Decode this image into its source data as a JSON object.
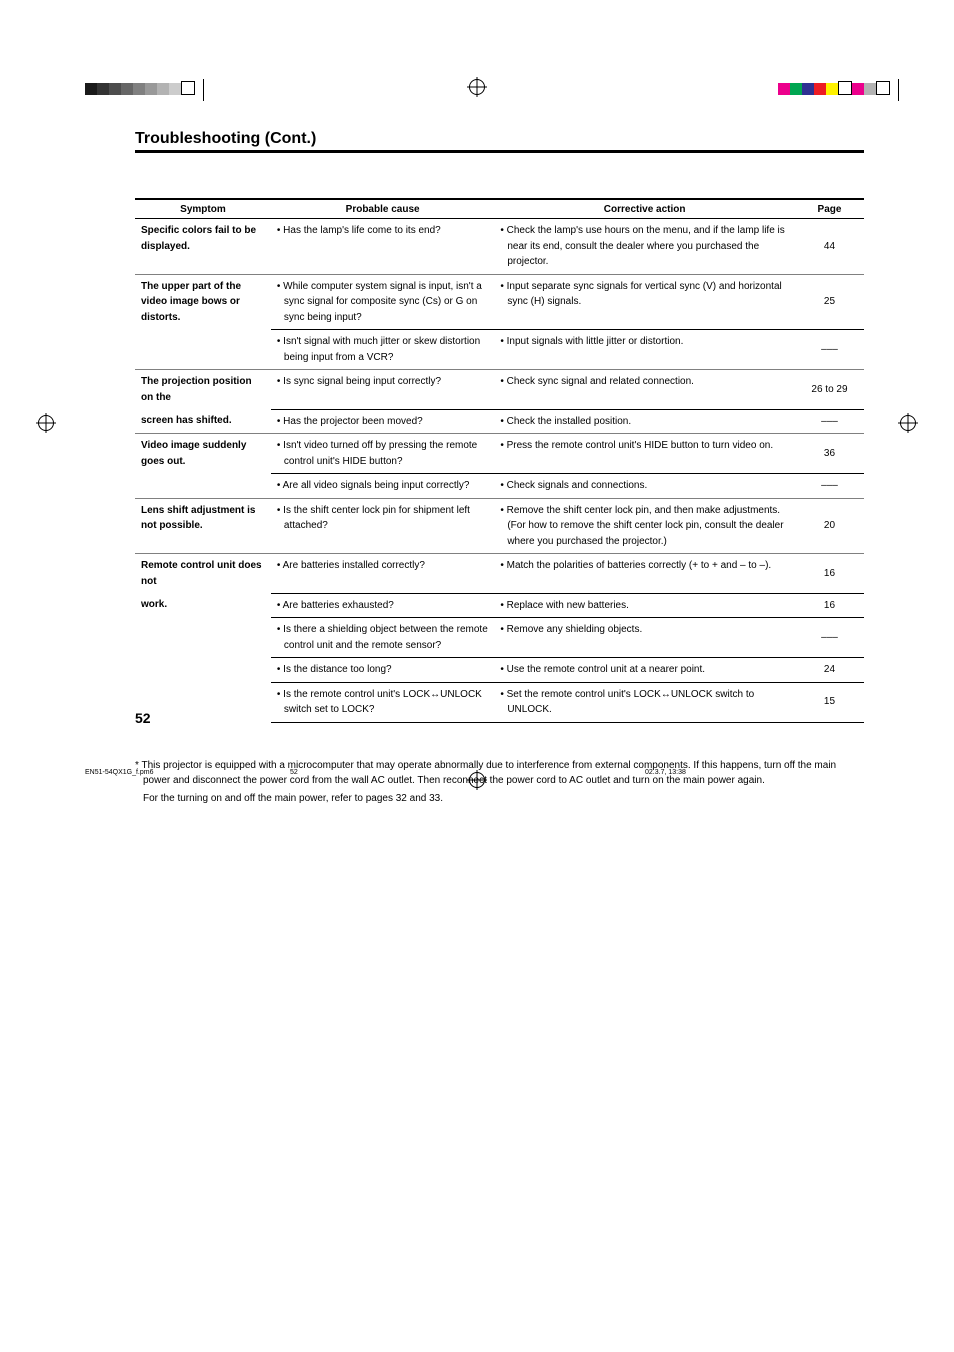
{
  "section_title": "Troubleshooting (Cont.)",
  "headers": {
    "symptom": "Symptom",
    "cause": "Probable cause",
    "action": "Corrective action",
    "page": "Page"
  },
  "rows": [
    {
      "symptom": "Specific colors fail to be displayed.",
      "cause": "• Has the lamp's life come to its end?",
      "action": "• Check the lamp's use hours on the menu, and if the lamp life is near its end, consult the dealer where you purchased the projector.",
      "page": "44",
      "group_top": true
    },
    {
      "symptom": "The upper part of the video image bows or distorts.",
      "cause": "• While computer system signal is input, isn't a sync signal for composite sync (Cs) or G on sync being input?",
      "action": "• Input separate sync signals for vertical sync (V) and horizontal sync (H) signals.",
      "page": "25",
      "group_top": true
    },
    {
      "symptom": "",
      "cause": "• Isn't signal with much jitter or skew distortion being input from a VCR?",
      "action": "• Input signals with little jitter or distortion.",
      "page": "–––",
      "sub": true
    },
    {
      "symptom": "The projection position on the screen has shifted.",
      "symptom_part1": "The projection position on the",
      "symptom_part2": "screen has shifted.",
      "cause": "• Is sync signal being input correctly?",
      "action": "• Check sync signal and related connection.",
      "page": "26 to 29",
      "group_top": true
    },
    {
      "cause": "• Has the projector been moved?",
      "action": "• Check the installed position.",
      "page": "–––",
      "sub": true
    },
    {
      "symptom": "Video image suddenly goes out.",
      "cause": "• Isn't video turned off by pressing the remote control unit's HIDE button?",
      "action": "• Press the remote control unit's HIDE button to turn video on.",
      "page": "36",
      "group_top": true
    },
    {
      "symptom": "",
      "cause": "• Are all video signals being input correctly?",
      "action": "• Check signals and connections.",
      "page": "–––",
      "sub": true
    },
    {
      "symptom": "Lens shift adjustment is not possible.",
      "cause": "• Is the shift center lock pin for shipment left attached?",
      "action": "• Remove the shift center lock pin, and then make adjustments. (For how to remove the shift center lock pin, consult the dealer where you purchased the projector.)",
      "page": "20",
      "group_top": true
    },
    {
      "symptom": "Remote control unit does not work.",
      "symptom_part1": "Remote control unit does not",
      "symptom_part2": "work.",
      "cause": "• Are batteries installed correctly?",
      "action": "• Match the polarities of batteries correctly (+ to + and – to –).",
      "page": "16",
      "group_top": true
    },
    {
      "cause": "• Are batteries exhausted?",
      "action": "• Replace with new batteries.",
      "page": "16",
      "sub": true
    },
    {
      "symptom": "",
      "cause": "• Is there a shielding object between the remote control unit and the remote sensor?",
      "action": "• Remove any shielding objects.",
      "page": "–––",
      "sub": true
    },
    {
      "symptom": "",
      "cause": "• Is the distance too long?",
      "action": "• Use the remote control unit at a nearer point.",
      "page": "24",
      "sub": true
    },
    {
      "symptom": "",
      "cause_pre": "• Is the remote control unit's LOCK",
      "cause_post": "UNLOCK switch set to LOCK?",
      "action_pre": "• Set the remote control unit's LOCK",
      "action_post": "UNLOCK switch to UNLOCK.",
      "page": "15",
      "sub": true
    }
  ],
  "arrow": "↔",
  "footnote": "* This projector is equipped with a microcomputer that may operate abnormally due to interference from external components. If this happens, turn off the main power and disconnect the power cord from the wall AC outlet. Then reconnect the power cord to AC outlet and turn on the main power again.",
  "footnote_sub": "For the turning on and off the main power, refer to pages 32 and 33.",
  "page_number": "52",
  "footer": {
    "file": "EN51-54QX1G_f.pm6",
    "page": "52",
    "datetime": "02.3.7, 13:38"
  },
  "top_bar_colors_left": [
    "#1a1a1a",
    "#333333",
    "#4d4d4d",
    "#666666",
    "#808080",
    "#999999",
    "#b3b3b3",
    "#cccccc",
    "#ffffff"
  ],
  "top_bar_colors_right": [
    "#ec008c",
    "#00a651",
    "#2e3192",
    "#ed1c24",
    "#fff200",
    "#ffffff",
    "#ec008c",
    "#b3b3b3",
    "#ffffff"
  ]
}
